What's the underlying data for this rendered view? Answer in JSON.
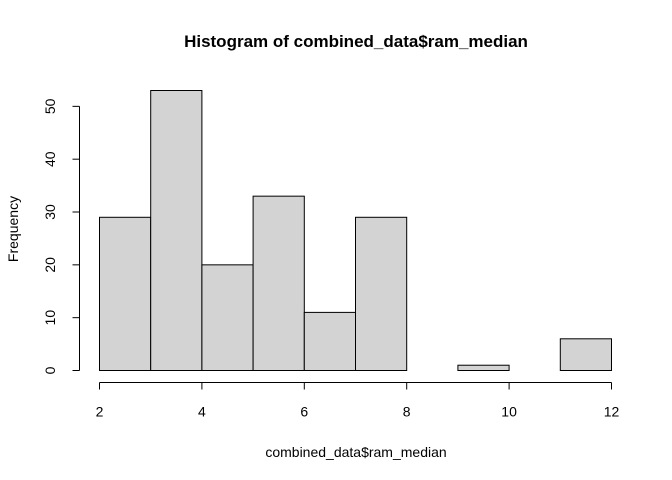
{
  "chart_data": {
    "type": "bar",
    "title": "Histogram of combined_data$ram_median",
    "xlabel": "combined_data$ram_median",
    "ylabel": "Frequency",
    "bin_edges": [
      2,
      3,
      4,
      5,
      6,
      7,
      8,
      9,
      10,
      11,
      12
    ],
    "values": [
      29,
      53,
      20,
      33,
      11,
      29,
      0,
      1,
      0,
      6
    ],
    "xlim": [
      2,
      12
    ],
    "ylim": [
      0,
      53
    ],
    "x_ticks": [
      2,
      4,
      6,
      8,
      10,
      12
    ],
    "y_ticks": [
      0,
      10,
      20,
      30,
      40,
      50
    ],
    "grid": false,
    "bar_color": "#d3d3d3",
    "edge_color": "#000000"
  }
}
